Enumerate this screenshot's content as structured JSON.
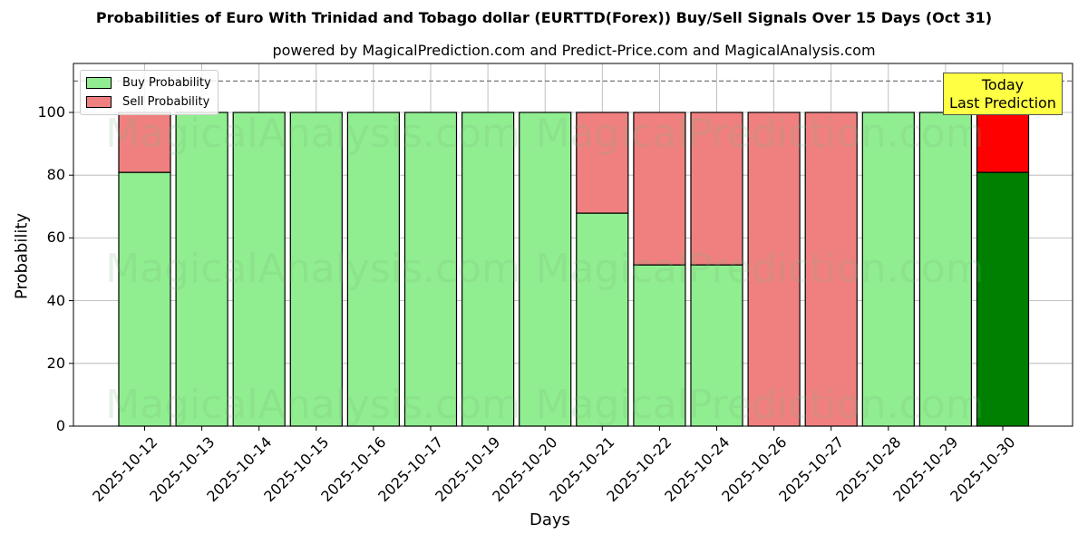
{
  "title": "Probabilities of Euro With Trinidad and Tobago dollar (EURTTD(Forex)) Buy/Sell Signals Over 15 Days (Oct 31)",
  "subtitle": "powered by MagicalPrediction.com and Predict-Price.com and MagicalAnalysis.com",
  "legend": {
    "buy": "Buy Probability",
    "sell": "Sell Probability"
  },
  "annotation": {
    "line1": "Today",
    "line2": "Last Prediction"
  },
  "watermark": [
    "MagicalAnalysis.com",
    "MagicalPrediction.com"
  ],
  "colors": {
    "buy": "#90ee90",
    "sell": "#f08080",
    "today_buy": "#008000",
    "today_sell": "#ff0000",
    "annotation_bg": "#ffff44"
  },
  "chart_data": {
    "type": "bar",
    "stacked": true,
    "title": "Probabilities of Euro With Trinidad and Tobago dollar (EURTTD(Forex)) Buy/Sell Signals Over 15 Days (Oct 31)",
    "subtitle": "powered by MagicalPrediction.com and Predict-Price.com and MagicalAnalysis.com",
    "xlabel": "Days",
    "ylabel": "Probability",
    "ylim": [
      0,
      115
    ],
    "yticks": [
      0,
      20,
      40,
      60,
      80,
      100
    ],
    "reference_line": 110,
    "grid": true,
    "legend_position": "upper left",
    "categories": [
      "2025-10-12",
      "2025-10-13",
      "2025-10-14",
      "2025-10-15",
      "2025-10-16",
      "2025-10-17",
      "2025-10-19",
      "2025-10-20",
      "2025-10-21",
      "2025-10-22",
      "2025-10-24",
      "2025-10-26",
      "2025-10-27",
      "2025-10-28",
      "2025-10-29",
      "2025-10-30"
    ],
    "series": [
      {
        "name": "Buy Probability",
        "values": [
          80.9,
          100,
          100,
          100,
          100,
          100,
          100,
          100,
          67.9,
          51.4,
          51.4,
          0,
          0,
          100,
          100,
          80.9
        ]
      },
      {
        "name": "Sell Probability",
        "values": [
          19.1,
          0,
          0,
          0,
          0,
          0,
          0,
          0,
          32.1,
          48.6,
          48.6,
          100,
          100,
          0,
          0,
          19.1
        ]
      }
    ],
    "annotations": [
      {
        "text": "Today\nLast Prediction",
        "x": "2025-10-30"
      }
    ]
  }
}
